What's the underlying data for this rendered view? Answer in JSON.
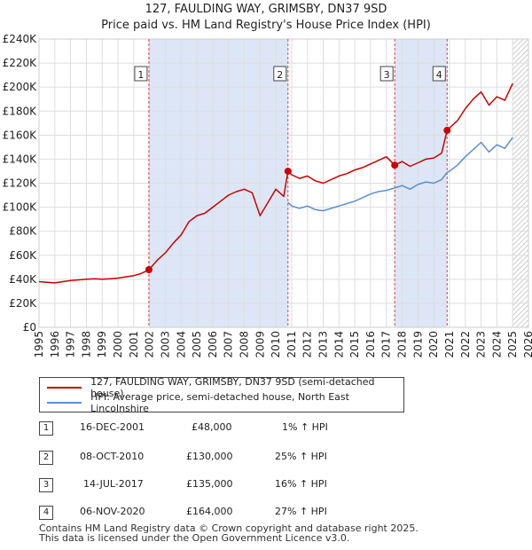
{
  "header": {
    "title": "127, FAULDING WAY, GRIMSBY, DN37 9SD",
    "subtitle": "Price paid vs. HM Land Registry's House Price Index (HPI)"
  },
  "colors": {
    "price_line": "#cc0000",
    "hpi_line": "#5b8fd0",
    "shade": "#dde6f6",
    "vline": "#dd4444"
  },
  "chart_data": {
    "type": "line",
    "ylim": [
      0,
      240000
    ],
    "xlim": [
      1995,
      2026
    ],
    "yticks": [
      "£0",
      "£20K",
      "£40K",
      "£60K",
      "£80K",
      "£100K",
      "£120K",
      "£140K",
      "£160K",
      "£180K",
      "£200K",
      "£220K",
      "£240K"
    ],
    "xticks": [
      "1995",
      "1996",
      "1997",
      "1998",
      "1999",
      "2000",
      "2001",
      "2002",
      "2003",
      "2004",
      "2005",
      "2006",
      "2007",
      "2008",
      "2009",
      "2010",
      "2011",
      "2012",
      "2013",
      "2014",
      "2015",
      "2016",
      "2017",
      "2018",
      "2019",
      "2020",
      "2021",
      "2022",
      "2023",
      "2024",
      "2025",
      "2026"
    ],
    "shaded_ranges": [
      [
        2001.96,
        2010.77
      ],
      [
        2017.53,
        2020.85
      ]
    ],
    "forecast_from": 2025.0,
    "series": [
      {
        "name": "127, FAULDING WAY, GRIMSBY, DN37 9SD (semi-detached house)",
        "x": [
          1995.0,
          1995.5,
          1996.0,
          1996.5,
          1997.0,
          1997.5,
          1998.0,
          1998.5,
          1999.0,
          1999.5,
          2000.0,
          2000.5,
          2001.0,
          2001.5,
          2001.96,
          2002.5,
          2003.0,
          2003.5,
          2004.0,
          2004.5,
          2005.0,
          2005.5,
          2006.0,
          2006.5,
          2007.0,
          2007.5,
          2008.0,
          2008.5,
          2009.0,
          2009.5,
          2010.0,
          2010.5,
          2010.77,
          2011.0,
          2011.5,
          2012.0,
          2012.5,
          2013.0,
          2013.5,
          2014.0,
          2014.5,
          2015.0,
          2015.5,
          2016.0,
          2016.5,
          2017.0,
          2017.53,
          2018.0,
          2018.5,
          2019.0,
          2019.5,
          2020.0,
          2020.5,
          2020.85,
          2021.0,
          2021.5,
          2022.0,
          2022.5,
          2023.0,
          2023.5,
          2024.0,
          2024.5,
          2025.0
        ],
        "y": [
          38000,
          37500,
          37000,
          38000,
          39000,
          39500,
          40000,
          40500,
          40000,
          40500,
          41000,
          42000,
          43000,
          45000,
          48000,
          56000,
          62000,
          70000,
          77000,
          88000,
          93000,
          95000,
          100000,
          105000,
          110000,
          113000,
          115000,
          112000,
          93000,
          104000,
          115000,
          109000,
          130000,
          127000,
          124000,
          126000,
          122000,
          120000,
          123000,
          126000,
          128000,
          131000,
          133000,
          136000,
          139000,
          142000,
          135000,
          138000,
          134000,
          137000,
          140000,
          141000,
          145000,
          164000,
          166000,
          172000,
          182000,
          190000,
          196000,
          185000,
          192000,
          189000,
          203000
        ]
      },
      {
        "name": "HPI: Average price, semi-detached house, North East Lincolnshire",
        "x": [
          2010.77,
          2011.0,
          2011.5,
          2012.0,
          2012.5,
          2013.0,
          2013.5,
          2014.0,
          2014.5,
          2015.0,
          2015.5,
          2016.0,
          2016.5,
          2017.0,
          2017.53,
          2018.0,
          2018.5,
          2019.0,
          2019.5,
          2020.0,
          2020.5,
          2020.85,
          2021.0,
          2021.5,
          2022.0,
          2022.5,
          2023.0,
          2023.5,
          2024.0,
          2024.5,
          2025.0
        ],
        "y": [
          104000,
          101000,
          99000,
          101000,
          98000,
          97000,
          99000,
          101000,
          103000,
          105000,
          108000,
          111000,
          113000,
          114000,
          116000,
          118000,
          115000,
          119000,
          121000,
          120000,
          123000,
          129000,
          130000,
          135000,
          142000,
          148000,
          154000,
          146000,
          152000,
          149000,
          158000
        ]
      }
    ],
    "sales": [
      {
        "label": "1",
        "x": 2001.96,
        "y": 48000
      },
      {
        "label": "2",
        "x": 2010.77,
        "y": 130000
      },
      {
        "label": "3",
        "x": 2017.53,
        "y": 135000
      },
      {
        "label": "4",
        "x": 2020.85,
        "y": 164000
      }
    ]
  },
  "legend": {
    "price": "127, FAULDING WAY, GRIMSBY, DN37 9SD (semi-detached house)",
    "hpi": "HPI: Average price, semi-detached house, North East Lincolnshire"
  },
  "transactions": [
    {
      "num": "1",
      "date": "16-DEC-2001",
      "price": "£48,000",
      "hpi": "1% ↑ HPI"
    },
    {
      "num": "2",
      "date": "08-OCT-2010",
      "price": "£130,000",
      "hpi": "25% ↑ HPI"
    },
    {
      "num": "3",
      "date": "14-JUL-2017",
      "price": "£135,000",
      "hpi": "16% ↑ HPI"
    },
    {
      "num": "4",
      "date": "06-NOV-2020",
      "price": "£164,000",
      "hpi": "27% ↑ HPI"
    }
  ],
  "footer": {
    "line1": "Contains HM Land Registry data © Crown copyright and database right 2025.",
    "line2": "This data is licensed under the Open Government Licence v3.0."
  }
}
